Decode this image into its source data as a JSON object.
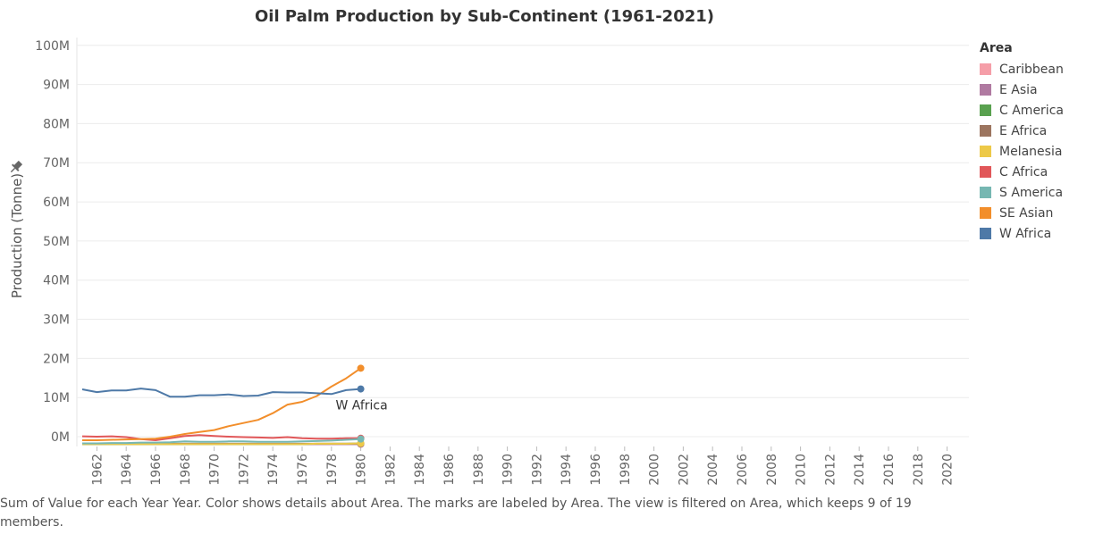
{
  "chart_data": {
    "type": "line",
    "title": "Oil Palm Production by Sub-Continent (1961-2021)",
    "ylabel": "Production (Tonne)",
    "xlabel": "",
    "ylim": [
      -2.5,
      102
    ],
    "y_ticks": [
      0,
      10,
      20,
      30,
      40,
      50,
      60,
      70,
      80,
      90,
      100
    ],
    "y_tick_labels": [
      "0M",
      "10M",
      "20M",
      "30M",
      "40M",
      "50M",
      "60M",
      "70M",
      "80M",
      "90M",
      "100M"
    ],
    "xlim": [
      1961,
      2021
    ],
    "x_ticks": [
      1962,
      1964,
      1966,
      1968,
      1970,
      1972,
      1974,
      1976,
      1978,
      1980,
      1982,
      1984,
      1986,
      1988,
      1990,
      1992,
      1994,
      1996,
      1998,
      2000,
      2002,
      2004,
      2006,
      2008,
      2010,
      2012,
      2014,
      2016,
      2018,
      2020
    ],
    "grid": true,
    "legend_title": "Area",
    "legend_position": "right",
    "end_label": "W Africa",
    "x": [
      1961,
      1962,
      1963,
      1964,
      1965,
      1966,
      1967,
      1968,
      1969,
      1970,
      1971,
      1972,
      1973,
      1974,
      1975,
      1976,
      1977,
      1978,
      1979,
      1980
    ],
    "series": [
      {
        "name": "Caribbean",
        "color": "#f59ea8",
        "values": [
          -1.9,
          -1.9,
          -1.9,
          -1.9,
          -1.9,
          -1.9,
          -1.9,
          -1.9,
          -1.9,
          -1.9,
          -1.9,
          -1.9,
          -1.9,
          -1.9,
          -1.9,
          -1.9,
          -1.9,
          -1.9,
          -1.9,
          -1.9
        ]
      },
      {
        "name": "E Asia",
        "color": "#b07aa1",
        "values": [
          -1.9,
          -1.9,
          -1.9,
          -1.9,
          -1.9,
          -1.9,
          -1.9,
          -1.9,
          -1.9,
          -1.9,
          -1.9,
          -1.9,
          -1.9,
          -1.9,
          -1.9,
          -1.9,
          -1.9,
          -1.9,
          -1.9,
          -1.9
        ]
      },
      {
        "name": "C America",
        "color": "#59a14f",
        "values": [
          -1.9,
          -1.9,
          -1.9,
          -1.9,
          -1.9,
          -1.9,
          -1.9,
          -1.9,
          -1.9,
          -1.9,
          -1.9,
          -1.9,
          -1.9,
          -1.9,
          -1.9,
          -1.9,
          -1.8,
          -1.8,
          -1.8,
          -1.7
        ]
      },
      {
        "name": "E Africa",
        "color": "#9c755f",
        "values": [
          -1.8,
          -1.8,
          -1.8,
          -1.8,
          -1.8,
          -1.8,
          -1.8,
          -1.8,
          -1.8,
          -1.8,
          -1.8,
          -1.8,
          -1.8,
          -1.8,
          -1.8,
          -1.8,
          -1.8,
          -1.8,
          -1.8,
          -1.8
        ]
      },
      {
        "name": "Melanesia",
        "color": "#edc948",
        "values": [
          -1.9,
          -1.9,
          -1.9,
          -1.9,
          -1.9,
          -1.9,
          -1.9,
          -1.9,
          -1.9,
          -1.9,
          -1.9,
          -1.9,
          -1.9,
          -1.9,
          -1.9,
          -1.9,
          -1.8,
          -1.8,
          -1.8,
          -1.7
        ]
      },
      {
        "name": "C Africa",
        "color": "#e15759",
        "values": [
          0.1,
          0.0,
          0.1,
          -0.1,
          -0.6,
          -0.9,
          -0.4,
          0.2,
          0.4,
          0.2,
          0.0,
          -0.1,
          -0.2,
          -0.3,
          -0.1,
          -0.4,
          -0.5,
          -0.5,
          -0.4,
          -0.4
        ]
      },
      {
        "name": "S America",
        "color": "#76b7b2",
        "values": [
          -1.7,
          -1.7,
          -1.6,
          -1.6,
          -1.5,
          -1.5,
          -1.4,
          -1.2,
          -1.3,
          -1.3,
          -1.2,
          -1.2,
          -1.3,
          -1.3,
          -1.3,
          -1.2,
          -1.1,
          -1.0,
          -0.8,
          -0.6
        ]
      },
      {
        "name": "SE Asian",
        "color": "#f28e2b",
        "values": [
          -0.9,
          -0.9,
          -0.8,
          -0.7,
          -0.6,
          -0.5,
          0.0,
          0.7,
          1.2,
          1.7,
          2.7,
          3.5,
          4.3,
          6.0,
          8.2,
          8.9,
          10.4,
          12.8,
          14.9,
          17.5
        ]
      },
      {
        "name": "W Africa",
        "color": "#4e79a7",
        "values": [
          12.1,
          11.4,
          11.8,
          11.8,
          12.3,
          11.9,
          10.2,
          10.2,
          10.6,
          10.6,
          10.8,
          10.4,
          10.5,
          11.4,
          11.3,
          11.3,
          11.1,
          10.9,
          11.9,
          12.2
        ]
      }
    ]
  },
  "caption": "Sum of Value for each Year Year.  Color shows details about Area.  The marks are labeled by Area. The view is filtered on Area, which keeps 9 of 19 members.",
  "pin_icon": "pin-icon"
}
